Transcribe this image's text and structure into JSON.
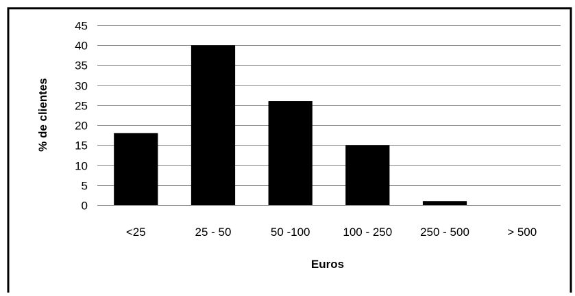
{
  "chart_data": {
    "type": "bar",
    "categories": [
      "<25",
      "25 - 50",
      "50 -100",
      "100 - 250",
      "250 - 500",
      "> 500"
    ],
    "values": [
      18,
      40,
      26,
      15,
      1,
      0
    ],
    "xlabel": "Euros",
    "ylabel": "% de clientes",
    "ylim": [
      0,
      45
    ],
    "yticks": [
      0,
      5,
      10,
      15,
      20,
      25,
      30,
      35,
      40,
      45
    ],
    "grid": true,
    "legend": "none",
    "colors": {
      "bar": "#000000",
      "grid": "#8c8c8c",
      "frame": "#000000",
      "background": "#ffffff"
    }
  }
}
